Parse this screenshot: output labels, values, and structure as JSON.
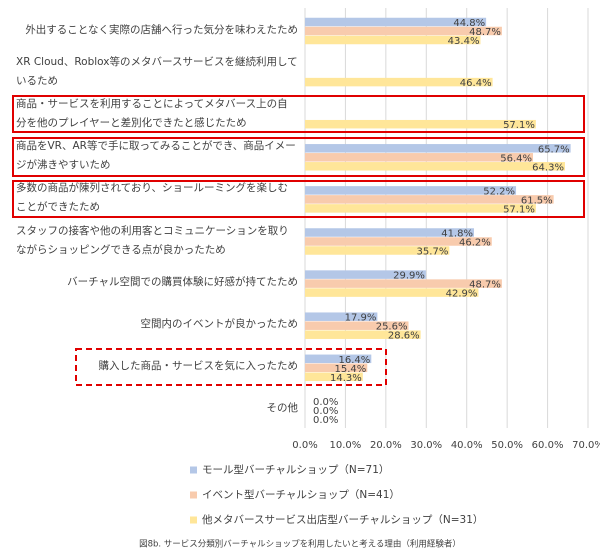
{
  "chart_data": {
    "type": "bar",
    "orientation": "horizontal",
    "caption": "図8b. サービス分類別バーチャルショップを利用したいと考える理由（利用経験者）",
    "categories": [
      "外出することなく実際の店舗へ行った気分を味わえたため",
      "XR Cloud、Roblox等のメタバースサービスを継続利用しているため",
      "商品・サービスを利用することによってメタバース上の自分を他のプレイヤーと差別化できたと感じたため",
      "商品をVR、AR等で手に取ってみることができ、商品イメージが沸きやすいため",
      "多数の商品が陳列されており、ショールーミングを楽しむことができたため",
      "スタッフの接客や他の利用客とコミュニケーションを取りながらショッピングできる点が良かったため",
      "バーチャル空間での購買体験に好感が持てたため",
      "空間内のイベントが良かったため",
      "購入した商品・サービスを気に入ったため",
      "その他"
    ],
    "series": [
      {
        "name": "モール型バーチャルショップ（N=71）",
        "color": "#b4c7e7",
        "values": [
          44.8,
          null,
          null,
          65.7,
          52.2,
          41.8,
          29.9,
          17.9,
          16.4,
          0.0
        ],
        "value_labels": [
          "44.8%",
          null,
          null,
          "65.7%",
          "52.2%",
          "41.8%",
          "29.9%",
          "17.9%",
          "16.4%",
          "0.0%"
        ]
      },
      {
        "name": "イベント型バーチャルショップ（N=41）",
        "color": "#f8cbad",
        "values": [
          48.7,
          null,
          null,
          56.4,
          61.5,
          46.2,
          48.7,
          25.6,
          15.4,
          0.0
        ],
        "value_labels": [
          "48.7%",
          null,
          null,
          "56.4%",
          "61.5%",
          "46.2%",
          "48.7%",
          "25.6%",
          "15.4%",
          "0.0%"
        ]
      },
      {
        "name": "他メタバースサービス出店型バーチャルショップ（N=31）",
        "color": "#ffe699",
        "values": [
          43.4,
          46.4,
          57.1,
          64.3,
          57.1,
          35.7,
          42.9,
          28.6,
          14.3,
          0.0
        ],
        "value_labels": [
          "43.4%",
          "46.4%",
          "57.1%",
          "64.3%",
          "57.1%",
          "35.7%",
          "42.9%",
          "28.6%",
          "14.3%",
          "0.0%"
        ]
      }
    ],
    "xlim": [
      0,
      70
    ],
    "xticks": [
      {
        "value": 0,
        "label": "0.0%"
      },
      {
        "value": 10,
        "label": "10.0%"
      },
      {
        "value": 20,
        "label": "20.0%"
      },
      {
        "value": 30,
        "label": "30.0%"
      },
      {
        "value": 40,
        "label": "40.0%"
      },
      {
        "value": 50,
        "label": "50.0%"
      },
      {
        "value": 60,
        "label": "60.0%"
      },
      {
        "value": 70,
        "label": "70.0%"
      }
    ],
    "grid": true
  }
}
